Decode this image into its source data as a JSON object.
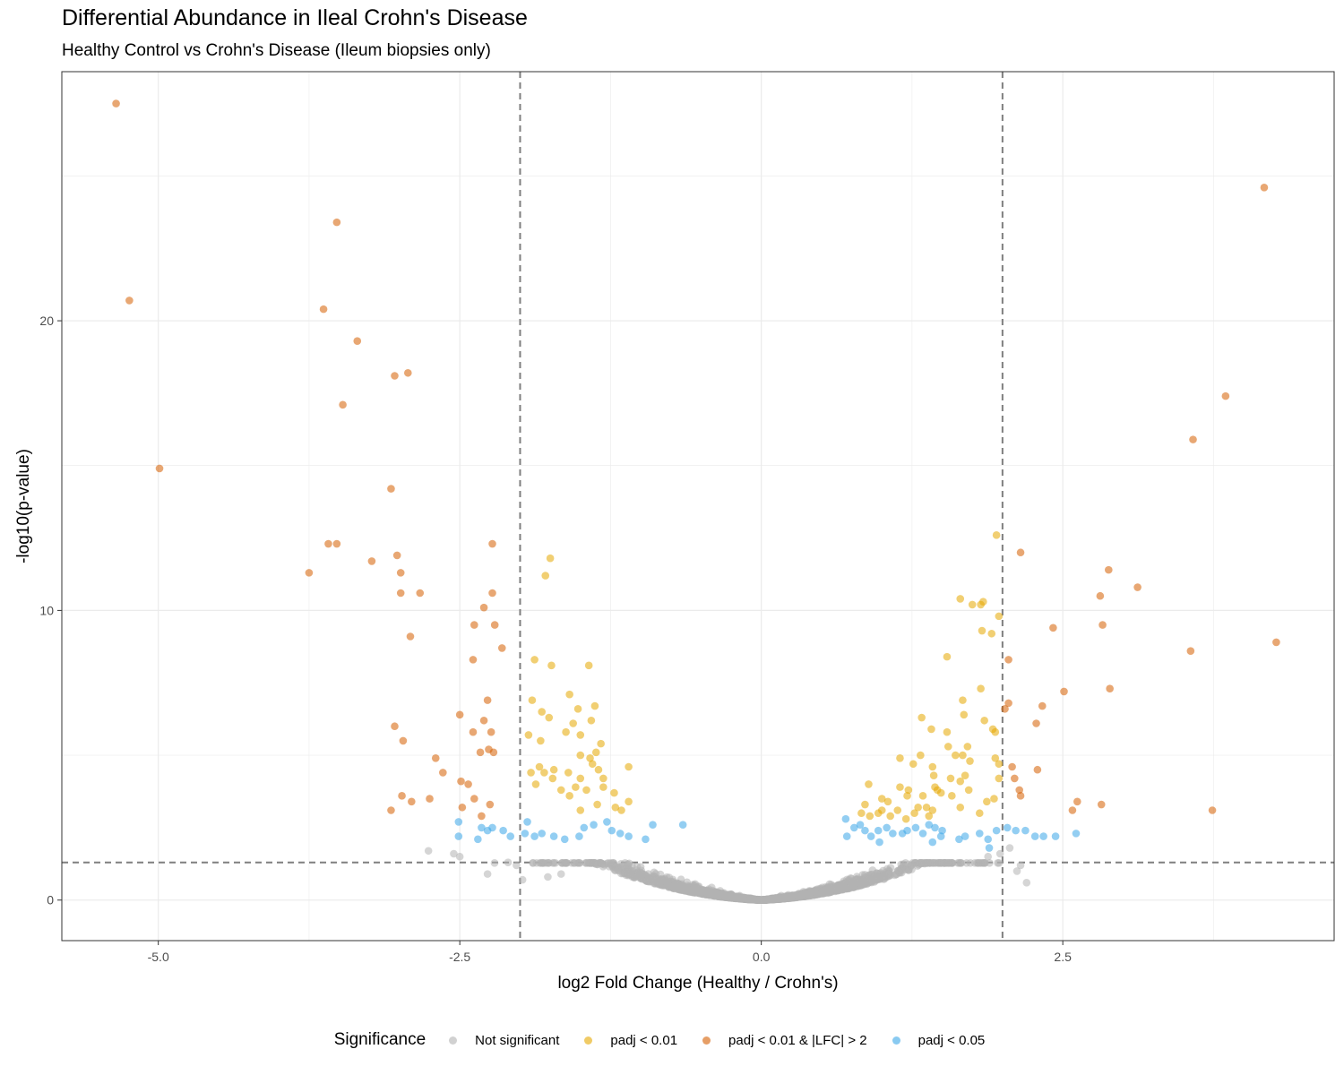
{
  "chart_data": {
    "type": "scatter",
    "title": "Differential Abundance in Ileal Crohn's Disease",
    "subtitle": "Healthy Control vs Crohn's Disease (Ileum biopsies only)",
    "xlabel": "log2 Fold Change (Healthy / Crohn's)",
    "ylabel": "-log10(p-value)",
    "xlim": [
      -5.8,
      4.75
    ],
    "ylim": [
      -1.4,
      28.6
    ],
    "x_ticks": [
      -5.0,
      -2.5,
      0.0,
      2.5
    ],
    "x_tick_labels": [
      "-5.0",
      "-2.5",
      "0.0",
      "2.5"
    ],
    "y_ticks": [
      0,
      10,
      20
    ],
    "y_tick_labels": [
      "0",
      "10",
      "20"
    ],
    "grid": true,
    "thresholds": {
      "vlines": [
        -2,
        2
      ],
      "hline": 1.3
    },
    "legend": {
      "title": "Significance",
      "position": "bottom",
      "entries": [
        {
          "label": "Not significant",
          "color": "#b3b3b3"
        },
        {
          "label": "padj < 0.01",
          "color": "#e6a800"
        },
        {
          "label": "padj < 0.01 & |LFC| > 2",
          "color": "#d55e00"
        },
        {
          "label": "padj < 0.05",
          "color": "#3aa6e8"
        }
      ]
    },
    "series": [
      {
        "name": "padj < 0.01 & |LFC| > 2",
        "color": "#d55e00",
        "points": [
          [
            -5.35,
            27.5
          ],
          [
            -5.24,
            20.7
          ],
          [
            -4.99,
            14.9
          ],
          [
            -3.52,
            23.4
          ],
          [
            -3.63,
            20.4
          ],
          [
            -3.35,
            19.3
          ],
          [
            -2.93,
            18.2
          ],
          [
            -3.04,
            18.1
          ],
          [
            -3.47,
            17.1
          ],
          [
            -3.07,
            14.2
          ],
          [
            -3.59,
            12.3
          ],
          [
            -3.52,
            12.3
          ],
          [
            -3.75,
            11.3
          ],
          [
            -3.23,
            11.7
          ],
          [
            -3.02,
            11.9
          ],
          [
            -2.99,
            11.3
          ],
          [
            -2.99,
            10.6
          ],
          [
            -2.83,
            10.6
          ],
          [
            -2.91,
            9.1
          ],
          [
            -2.23,
            12.3
          ],
          [
            -2.23,
            10.6
          ],
          [
            -2.3,
            10.1
          ],
          [
            -2.38,
            9.5
          ],
          [
            -2.21,
            9.5
          ],
          [
            -2.15,
            8.7
          ],
          [
            -2.39,
            8.3
          ],
          [
            -2.27,
            6.9
          ],
          [
            -2.5,
            6.4
          ],
          [
            -2.3,
            6.2
          ],
          [
            -2.39,
            5.8
          ],
          [
            -2.24,
            5.8
          ],
          [
            -3.04,
            6.0
          ],
          [
            -2.97,
            5.5
          ],
          [
            -2.22,
            5.1
          ],
          [
            -2.26,
            5.2
          ],
          [
            -2.33,
            5.1
          ],
          [
            -2.7,
            4.9
          ],
          [
            -2.49,
            4.1
          ],
          [
            -2.43,
            4.0
          ],
          [
            -2.64,
            4.4
          ],
          [
            -2.98,
            3.6
          ],
          [
            -2.9,
            3.4
          ],
          [
            -2.75,
            3.5
          ],
          [
            -2.38,
            3.5
          ],
          [
            -2.25,
            3.3
          ],
          [
            -3.07,
            3.1
          ],
          [
            -2.32,
            2.9
          ],
          [
            -2.48,
            3.2
          ],
          [
            2.15,
            12.0
          ],
          [
            2.05,
            8.3
          ],
          [
            2.02,
            6.6
          ],
          [
            2.05,
            6.8
          ],
          [
            2.33,
            6.7
          ],
          [
            2.28,
            6.1
          ],
          [
            2.42,
            9.4
          ],
          [
            2.08,
            4.6
          ],
          [
            2.29,
            4.5
          ],
          [
            2.1,
            4.2
          ],
          [
            2.14,
            3.8
          ],
          [
            2.15,
            3.6
          ],
          [
            2.51,
            7.2
          ],
          [
            2.62,
            3.4
          ],
          [
            2.58,
            3.1
          ],
          [
            2.81,
            10.5
          ],
          [
            2.83,
            9.5
          ],
          [
            2.88,
            11.4
          ],
          [
            2.89,
            7.3
          ],
          [
            3.12,
            10.8
          ],
          [
            3.56,
            8.6
          ],
          [
            3.58,
            15.9
          ],
          [
            3.85,
            17.4
          ],
          [
            4.17,
            24.6
          ],
          [
            4.27,
            8.9
          ],
          [
            3.74,
            3.1
          ],
          [
            2.82,
            3.3
          ]
        ]
      },
      {
        "name": "padj < 0.01",
        "color": "#e6a800",
        "points": [
          [
            -1.75,
            11.8
          ],
          [
            -1.79,
            11.2
          ],
          [
            -1.88,
            8.3
          ],
          [
            -1.74,
            8.1
          ],
          [
            -1.43,
            8.1
          ],
          [
            -1.59,
            7.1
          ],
          [
            -1.38,
            6.7
          ],
          [
            -1.9,
            6.9
          ],
          [
            -1.82,
            6.5
          ],
          [
            -1.52,
            6.6
          ],
          [
            -1.76,
            6.3
          ],
          [
            -1.56,
            6.1
          ],
          [
            -1.41,
            6.2
          ],
          [
            -1.62,
            5.8
          ],
          [
            -1.5,
            5.7
          ],
          [
            -1.83,
            5.5
          ],
          [
            -1.93,
            5.7
          ],
          [
            -1.33,
            5.4
          ],
          [
            -1.37,
            5.1
          ],
          [
            -1.5,
            5.0
          ],
          [
            -1.42,
            4.9
          ],
          [
            -1.84,
            4.6
          ],
          [
            -1.4,
            4.7
          ],
          [
            -1.72,
            4.5
          ],
          [
            -1.8,
            4.4
          ],
          [
            -1.6,
            4.4
          ],
          [
            -1.1,
            4.6
          ],
          [
            -1.5,
            4.2
          ],
          [
            -1.35,
            4.5
          ],
          [
            -1.31,
            4.2
          ],
          [
            -1.73,
            4.2
          ],
          [
            -1.91,
            4.4
          ],
          [
            -1.87,
            4.0
          ],
          [
            -1.66,
            3.8
          ],
          [
            -1.31,
            3.9
          ],
          [
            -1.45,
            3.8
          ],
          [
            -1.54,
            3.9
          ],
          [
            -1.22,
            3.7
          ],
          [
            -1.59,
            3.6
          ],
          [
            -1.1,
            3.4
          ],
          [
            -1.36,
            3.3
          ],
          [
            -1.5,
            3.1
          ],
          [
            -1.21,
            3.2
          ],
          [
            -1.16,
            3.1
          ],
          [
            1.95,
            12.6
          ],
          [
            1.65,
            10.4
          ],
          [
            1.84,
            10.3
          ],
          [
            1.82,
            10.2
          ],
          [
            1.75,
            10.2
          ],
          [
            1.83,
            9.3
          ],
          [
            1.91,
            9.2
          ],
          [
            1.97,
            9.8
          ],
          [
            1.54,
            8.4
          ],
          [
            1.82,
            7.3
          ],
          [
            1.67,
            6.9
          ],
          [
            1.68,
            6.4
          ],
          [
            1.85,
            6.2
          ],
          [
            1.92,
            5.9
          ],
          [
            1.94,
            5.8
          ],
          [
            1.33,
            6.3
          ],
          [
            1.41,
            5.9
          ],
          [
            1.54,
            5.8
          ],
          [
            1.71,
            5.3
          ],
          [
            1.55,
            5.3
          ],
          [
            1.61,
            5.0
          ],
          [
            1.67,
            5.0
          ],
          [
            1.73,
            4.8
          ],
          [
            1.94,
            4.9
          ],
          [
            1.97,
            4.7
          ],
          [
            1.15,
            4.9
          ],
          [
            1.32,
            5.0
          ],
          [
            1.26,
            4.7
          ],
          [
            1.42,
            4.6
          ],
          [
            1.43,
            4.3
          ],
          [
            1.69,
            4.3
          ],
          [
            1.57,
            4.2
          ],
          [
            1.65,
            4.1
          ],
          [
            1.97,
            4.2
          ],
          [
            0.89,
            4.0
          ],
          [
            1.15,
            3.9
          ],
          [
            1.22,
            3.8
          ],
          [
            1.34,
            3.6
          ],
          [
            1.44,
            3.9
          ],
          [
            1.46,
            3.8
          ],
          [
            1.49,
            3.7
          ],
          [
            1.58,
            3.6
          ],
          [
            1.72,
            3.8
          ],
          [
            1.87,
            3.4
          ],
          [
            1.93,
            3.5
          ],
          [
            1.21,
            3.6
          ],
          [
            1.0,
            3.5
          ],
          [
            1.05,
            3.4
          ],
          [
            0.86,
            3.3
          ],
          [
            1.0,
            3.1
          ],
          [
            1.13,
            3.1
          ],
          [
            1.3,
            3.2
          ],
          [
            1.37,
            3.2
          ],
          [
            1.27,
            3.0
          ],
          [
            1.39,
            2.9
          ],
          [
            0.97,
            3.0
          ],
          [
            0.83,
            3.0
          ],
          [
            0.9,
            2.9
          ],
          [
            1.07,
            2.9
          ],
          [
            1.2,
            2.8
          ],
          [
            1.42,
            3.1
          ],
          [
            1.65,
            3.2
          ],
          [
            1.81,
            3.0
          ]
        ]
      },
      {
        "name": "padj < 0.05",
        "color": "#3aa6e8",
        "points": [
          [
            -2.51,
            2.7
          ],
          [
            -2.51,
            2.2
          ],
          [
            -2.23,
            2.5
          ],
          [
            -2.08,
            2.2
          ],
          [
            -2.14,
            2.4
          ],
          [
            -2.32,
            2.5
          ],
          [
            -2.27,
            2.4
          ],
          [
            -2.35,
            2.1
          ],
          [
            -1.94,
            2.7
          ],
          [
            -1.96,
            2.3
          ],
          [
            -1.88,
            2.2
          ],
          [
            -1.82,
            2.3
          ],
          [
            -1.72,
            2.2
          ],
          [
            -1.63,
            2.1
          ],
          [
            -1.51,
            2.2
          ],
          [
            -1.47,
            2.5
          ],
          [
            -1.39,
            2.6
          ],
          [
            -1.28,
            2.7
          ],
          [
            -1.24,
            2.4
          ],
          [
            -1.17,
            2.3
          ],
          [
            -1.1,
            2.2
          ],
          [
            -0.96,
            2.1
          ],
          [
            -0.9,
            2.6
          ],
          [
            -0.65,
            2.6
          ],
          [
            0.7,
            2.8
          ],
          [
            0.77,
            2.5
          ],
          [
            0.71,
            2.2
          ],
          [
            0.82,
            2.6
          ],
          [
            0.86,
            2.4
          ],
          [
            0.91,
            2.2
          ],
          [
            0.97,
            2.4
          ],
          [
            1.04,
            2.5
          ],
          [
            1.09,
            2.3
          ],
          [
            1.17,
            2.3
          ],
          [
            1.28,
            2.5
          ],
          [
            1.21,
            2.4
          ],
          [
            1.34,
            2.3
          ],
          [
            1.39,
            2.6
          ],
          [
            1.44,
            2.5
          ],
          [
            1.5,
            2.4
          ],
          [
            1.49,
            2.2
          ],
          [
            1.64,
            2.1
          ],
          [
            1.69,
            2.2
          ],
          [
            1.81,
            2.3
          ],
          [
            1.88,
            2.1
          ],
          [
            1.89,
            1.8
          ],
          [
            1.95,
            2.4
          ],
          [
            2.04,
            2.5
          ],
          [
            2.11,
            2.4
          ],
          [
            2.19,
            2.4
          ],
          [
            2.27,
            2.2
          ],
          [
            2.34,
            2.2
          ],
          [
            2.44,
            2.2
          ],
          [
            2.61,
            2.3
          ],
          [
            1.42,
            2.0
          ],
          [
            0.98,
            2.0
          ]
        ]
      },
      {
        "name": "Not significant",
        "color": "#b3b3b3",
        "generated": true,
        "count": 2400,
        "spread_note": "Dense V-shaped cloud near origin; -log10(p) grows with |LFC|, all below threshold 1.3 except a few near the vertical lines",
        "points": [
          [
            -2.76,
            1.7
          ],
          [
            -2.55,
            1.6
          ],
          [
            -2.5,
            1.5
          ],
          [
            -2.1,
            1.3
          ],
          [
            -2.03,
            1.2
          ],
          [
            -2.27,
            0.9
          ],
          [
            -1.98,
            0.7
          ],
          [
            -1.77,
            0.8
          ],
          [
            -1.66,
            0.9
          ],
          [
            2.2,
            0.6
          ],
          [
            2.15,
            1.2
          ],
          [
            1.98,
            1.6
          ],
          [
            2.06,
            1.8
          ],
          [
            1.88,
            1.5
          ],
          [
            2.12,
            1.0
          ]
        ]
      }
    ]
  }
}
